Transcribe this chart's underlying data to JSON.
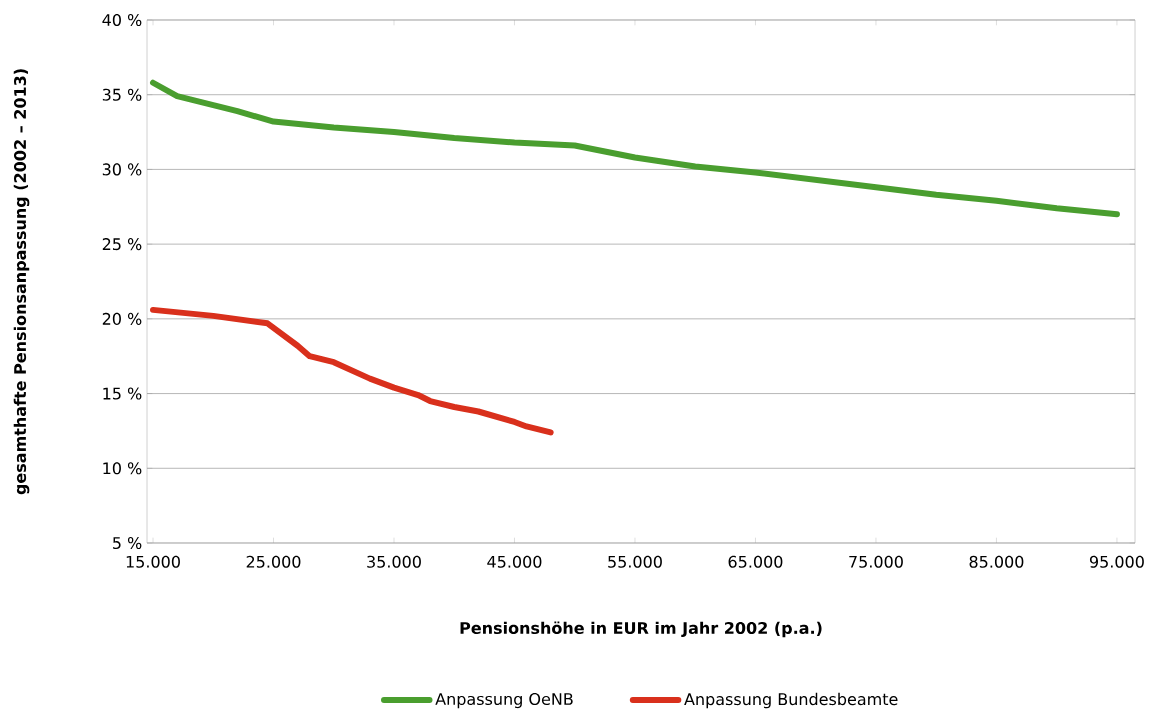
{
  "chart_data": {
    "type": "line",
    "xlabel": "Pensionshöhe in EUR im Jahr 2002 (p.a.)",
    "ylabel": "gesamthafte Pensionsanpassung (2002 – 2013)",
    "xlim": [
      14500,
      96500
    ],
    "ylim": [
      5,
      40
    ],
    "xticks": [
      {
        "value": 15000,
        "label": "15.000"
      },
      {
        "value": 25000,
        "label": "25.000"
      },
      {
        "value": 35000,
        "label": "35.000"
      },
      {
        "value": 45000,
        "label": "45.000"
      },
      {
        "value": 55000,
        "label": "55.000"
      },
      {
        "value": 65000,
        "label": "65.000"
      },
      {
        "value": 75000,
        "label": "75.000"
      },
      {
        "value": 85000,
        "label": "85.000"
      },
      {
        "value": 95000,
        "label": "95.000"
      }
    ],
    "yticks": [
      {
        "value": 5,
        "label": "5 %"
      },
      {
        "value": 10,
        "label": "10 %"
      },
      {
        "value": 15,
        "label": "15 %"
      },
      {
        "value": 20,
        "label": "20 %"
      },
      {
        "value": 25,
        "label": "25 %"
      },
      {
        "value": 30,
        "label": "30 %"
      },
      {
        "value": 35,
        "label": "35 %"
      },
      {
        "value": 40,
        "label": "40 %"
      }
    ],
    "grid": "y",
    "legend": "bottom",
    "marker": "none",
    "line_style": "solid",
    "series": [
      {
        "name": "Anpassung OeNB",
        "color": "#4a9e2f",
        "x": [
          15000,
          17000,
          20000,
          22000,
          25000,
          30000,
          35000,
          40000,
          45000,
          50000,
          55000,
          60000,
          65000,
          70000,
          75000,
          80000,
          85000,
          90000,
          95000
        ],
        "values": [
          35.8,
          34.9,
          34.3,
          33.9,
          33.2,
          32.8,
          32.5,
          32.1,
          31.8,
          31.6,
          30.8,
          30.2,
          29.8,
          29.3,
          28.8,
          28.3,
          27.9,
          27.4,
          27.0
        ]
      },
      {
        "name": "Anpassung Bundesbeamte",
        "color": "#d9301c",
        "x": [
          15000,
          20000,
          24500,
          27000,
          28000,
          30000,
          33000,
          35000,
          37000,
          38000,
          40000,
          42000,
          45000,
          46000,
          48000
        ],
        "values": [
          20.6,
          20.2,
          19.7,
          18.2,
          17.5,
          17.1,
          16.0,
          15.4,
          14.9,
          14.5,
          14.1,
          13.8,
          13.1,
          12.8,
          12.4
        ]
      }
    ]
  }
}
